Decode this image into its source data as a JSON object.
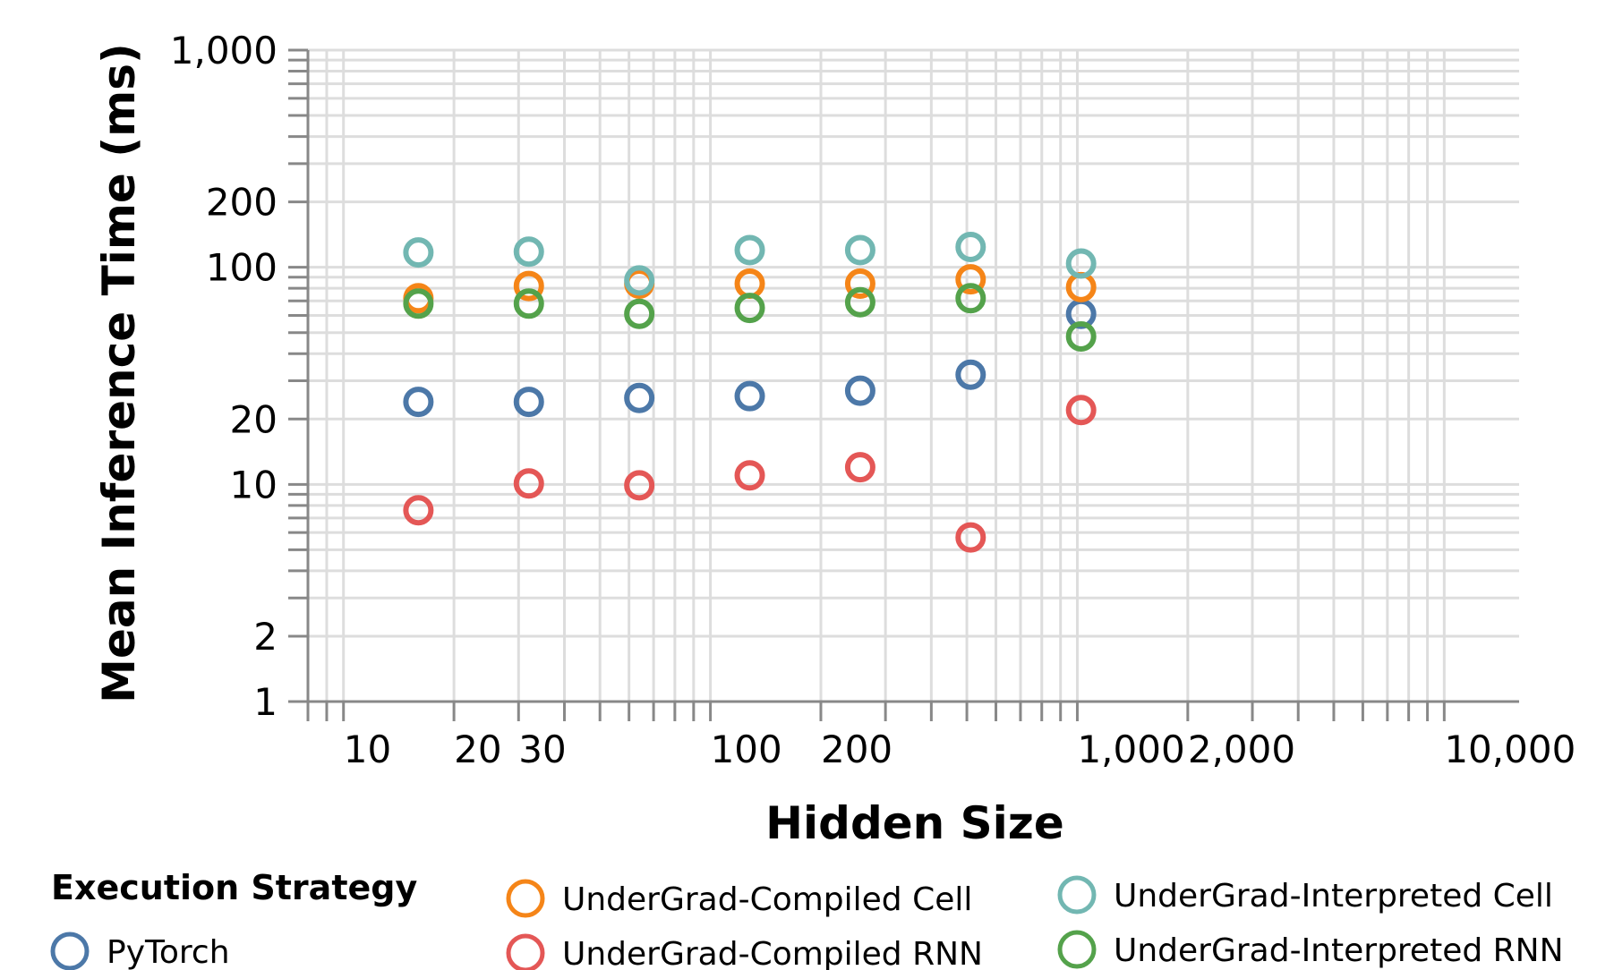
{
  "chart_data": {
    "type": "scatter",
    "title": "",
    "xlabel": "Hidden Size",
    "ylabel": "Mean Inference Time (ms)",
    "x_scale": "log",
    "y_scale": "log",
    "xlim": [
      8,
      16000
    ],
    "ylim": [
      1,
      1000
    ],
    "grid": true,
    "x_tick_labels": [
      {
        "value": 10,
        "label": "10"
      },
      {
        "value": 20,
        "label": "20"
      },
      {
        "value": 30,
        "label": "30"
      },
      {
        "value": 100,
        "label": "100"
      },
      {
        "value": 200,
        "label": "200"
      },
      {
        "value": 1000,
        "label": "1,000"
      },
      {
        "value": 2000,
        "label": "2,000"
      },
      {
        "value": 10000,
        "label": "10,000"
      }
    ],
    "y_tick_labels": [
      {
        "value": 1,
        "label": "1"
      },
      {
        "value": 2,
        "label": "2"
      },
      {
        "value": 10,
        "label": "10"
      },
      {
        "value": 20,
        "label": "20"
      },
      {
        "value": 100,
        "label": "100"
      },
      {
        "value": 200,
        "label": "200"
      },
      {
        "value": 1000,
        "label": "1,000"
      }
    ],
    "legend": {
      "title": "Execution Strategy",
      "placement": "bottom"
    },
    "x": [
      16,
      32,
      64,
      128,
      256,
      512,
      1024
    ],
    "series": [
      {
        "name": "PyTorch",
        "color": "#4c78a8",
        "values": [
          24,
          24,
          25,
          25.5,
          27,
          32,
          61
        ]
      },
      {
        "name": "UnderGrad-Compiled Cell",
        "color": "#f58518",
        "values": [
          72,
          82,
          84,
          84,
          84,
          88,
          81
        ]
      },
      {
        "name": "UnderGrad-Compiled RNN",
        "color": "#e45756",
        "values": [
          7.6,
          10.1,
          9.9,
          11,
          12,
          5.7,
          22
        ]
      },
      {
        "name": "UnderGrad-Interpreted Cell",
        "color": "#72b7b2",
        "values": [
          117,
          118,
          87,
          120,
          120,
          124,
          104
        ]
      },
      {
        "name": "UnderGrad-Interpreted RNN",
        "color": "#54a24b",
        "values": [
          68,
          68,
          61,
          65,
          69,
          72,
          48
        ]
      }
    ]
  }
}
